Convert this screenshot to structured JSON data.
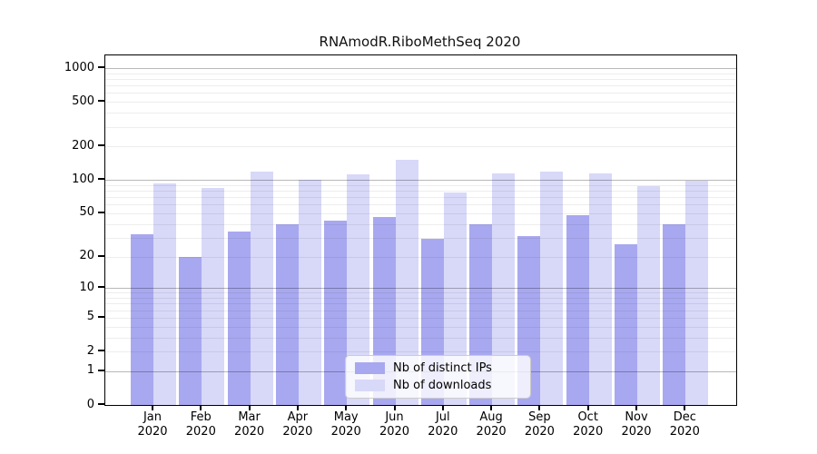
{
  "title": "RNAmodR.RiboMethSeq 2020",
  "colors": {
    "ips_bar": "#a8a8f0",
    "downloads_bar": "#d8d8f8",
    "axis": "#000000",
    "major_grid": "rgba(0,0,0,0.28)",
    "minor_grid": "rgba(0,0,0,0.07)",
    "legend_border": "#cccccc"
  },
  "legend": {
    "items": [
      {
        "key": "ips",
        "label": "Nb of distinct IPs",
        "color": "#a8a8f0"
      },
      {
        "key": "downloads",
        "label": "Nb of downloads",
        "color": "#d8d8f8"
      }
    ]
  },
  "chart_data": {
    "type": "bar",
    "title": "RNAmodR.RiboMethSeq 2020",
    "categories": [
      "Jan",
      "Feb",
      "Mar",
      "Apr",
      "May",
      "Jun",
      "Jul",
      "Aug",
      "Sep",
      "Oct",
      "Nov",
      "Dec"
    ],
    "category_year": "2020",
    "series": [
      {
        "key": "ips",
        "name": "Nb of distinct IPs",
        "color": "#a8a8f0",
        "values": [
          32,
          20,
          34,
          40,
          43,
          46,
          29,
          40,
          31,
          48,
          26,
          40
        ]
      },
      {
        "key": "downloads",
        "name": "Nb of downloads",
        "color": "#d8d8f8",
        "values": [
          93,
          85,
          120,
          100,
          112,
          152,
          77,
          114,
          119,
          115,
          88,
          98
        ]
      }
    ],
    "yscale": "log10(1+x)",
    "y_tick_labels": [
      1000,
      500,
      200,
      100,
      50,
      20,
      10,
      5,
      2,
      1,
      0
    ],
    "y_major_grid": [
      1,
      10,
      100,
      1000
    ],
    "y_minor_grid": [
      2,
      3,
      4,
      5,
      6,
      7,
      8,
      9,
      20,
      30,
      40,
      50,
      60,
      70,
      80,
      90,
      200,
      300,
      400,
      500,
      600,
      700,
      800,
      900
    ],
    "ylim": [
      0,
      1290
    ],
    "xlabel": "",
    "ylabel": "",
    "grid": "horizontal",
    "legend_position": "lower center"
  }
}
